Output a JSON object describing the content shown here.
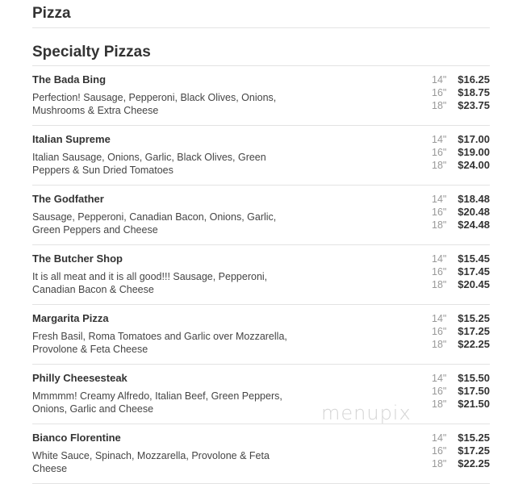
{
  "category_title": "Pizza",
  "section_title": "Specialty Pizzas",
  "items": [
    {
      "name": "The Bada Bing",
      "description": "Perfection! Sausage, Pepperoni, Black Olives, Onions, Mushrooms & Extra Cheese",
      "prices": [
        {
          "size": "14\"",
          "price": "$16.25"
        },
        {
          "size": "16\"",
          "price": "$18.75"
        },
        {
          "size": "18\"",
          "price": "$23.75"
        }
      ]
    },
    {
      "name": "Italian Supreme",
      "description": "Italian Sausage, Onions, Garlic, Black Olives, Green Peppers & Sun Dried Tomatoes",
      "prices": [
        {
          "size": "14\"",
          "price": "$17.00"
        },
        {
          "size": "16\"",
          "price": "$19.00"
        },
        {
          "size": "18\"",
          "price": "$24.00"
        }
      ]
    },
    {
      "name": "The Godfather",
      "description": "Sausage, Pepperoni, Canadian Bacon, Onions, Garlic, Green Peppers and Cheese",
      "prices": [
        {
          "size": "14\"",
          "price": "$18.48"
        },
        {
          "size": "16\"",
          "price": "$20.48"
        },
        {
          "size": "18\"",
          "price": "$24.48"
        }
      ]
    },
    {
      "name": "The Butcher Shop",
      "description": "It is all meat and it is all good!!! Sausage, Pepperoni, Canadian Bacon & Cheese",
      "prices": [
        {
          "size": "14\"",
          "price": "$15.45"
        },
        {
          "size": "16\"",
          "price": "$17.45"
        },
        {
          "size": "18\"",
          "price": "$20.45"
        }
      ]
    },
    {
      "name": "Margarita Pizza",
      "description": "Fresh Basil, Roma Tomatoes and Garlic over Mozzarella, Provolone & Feta Cheese",
      "prices": [
        {
          "size": "14\"",
          "price": "$15.25"
        },
        {
          "size": "16\"",
          "price": "$17.25"
        },
        {
          "size": "18\"",
          "price": "$22.25"
        }
      ]
    },
    {
      "name": "Philly Cheesesteak",
      "description": "Mmmmm! Creamy Alfredo, Italian Beef, Green Peppers, Onions, Garlic and Cheese",
      "prices": [
        {
          "size": "14\"",
          "price": "$15.50"
        },
        {
          "size": "16\"",
          "price": "$17.50"
        },
        {
          "size": "18\"",
          "price": "$21.50"
        }
      ]
    },
    {
      "name": "Bianco Florentine",
      "description": "White Sauce, Spinach, Mozzarella, Provolone & Feta Cheese",
      "prices": [
        {
          "size": "14\"",
          "price": "$15.25"
        },
        {
          "size": "16\"",
          "price": "$17.25"
        },
        {
          "size": "18\"",
          "price": "$22.25"
        }
      ]
    }
  ],
  "watermark": "menupix"
}
